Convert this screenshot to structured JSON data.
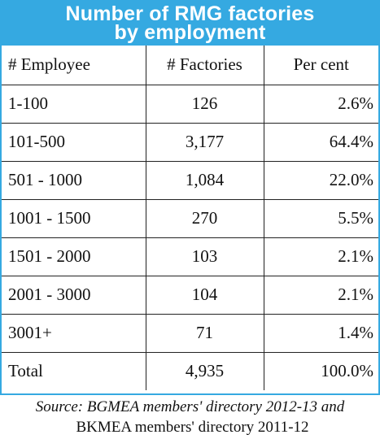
{
  "title": {
    "line1": "Number of RMG factories",
    "line2": "by employment"
  },
  "table": {
    "headers": [
      "# Employee",
      "# Factories",
      "Per cent"
    ],
    "rows": [
      {
        "employee": "1-100",
        "factories": "126",
        "percent": "2.6%"
      },
      {
        "employee": "101-500",
        "factories": "3,177",
        "percent": "64.4%"
      },
      {
        "employee": "501 - 1000",
        "factories": "1,084",
        "percent": "22.0%"
      },
      {
        "employee": "1001 - 1500",
        "factories": "270",
        "percent": "5.5%"
      },
      {
        "employee": "1501 - 2000",
        "factories": "103",
        "percent": "2.1%"
      },
      {
        "employee": "2001 - 3000",
        "factories": "104",
        "percent": "2.1%"
      },
      {
        "employee": "3001+",
        "factories": "71",
        "percent": "1.4%"
      },
      {
        "employee": "Total",
        "factories": "4,935",
        "percent": "100.0%"
      }
    ]
  },
  "source": {
    "line1": "Source: BGMEA members' directory 2012-13 and",
    "line2": "BKMEA members' directory 2011-12"
  },
  "colors": {
    "accent": "#35a9e1",
    "title_text": "#ffffff",
    "grid": "#222222"
  }
}
